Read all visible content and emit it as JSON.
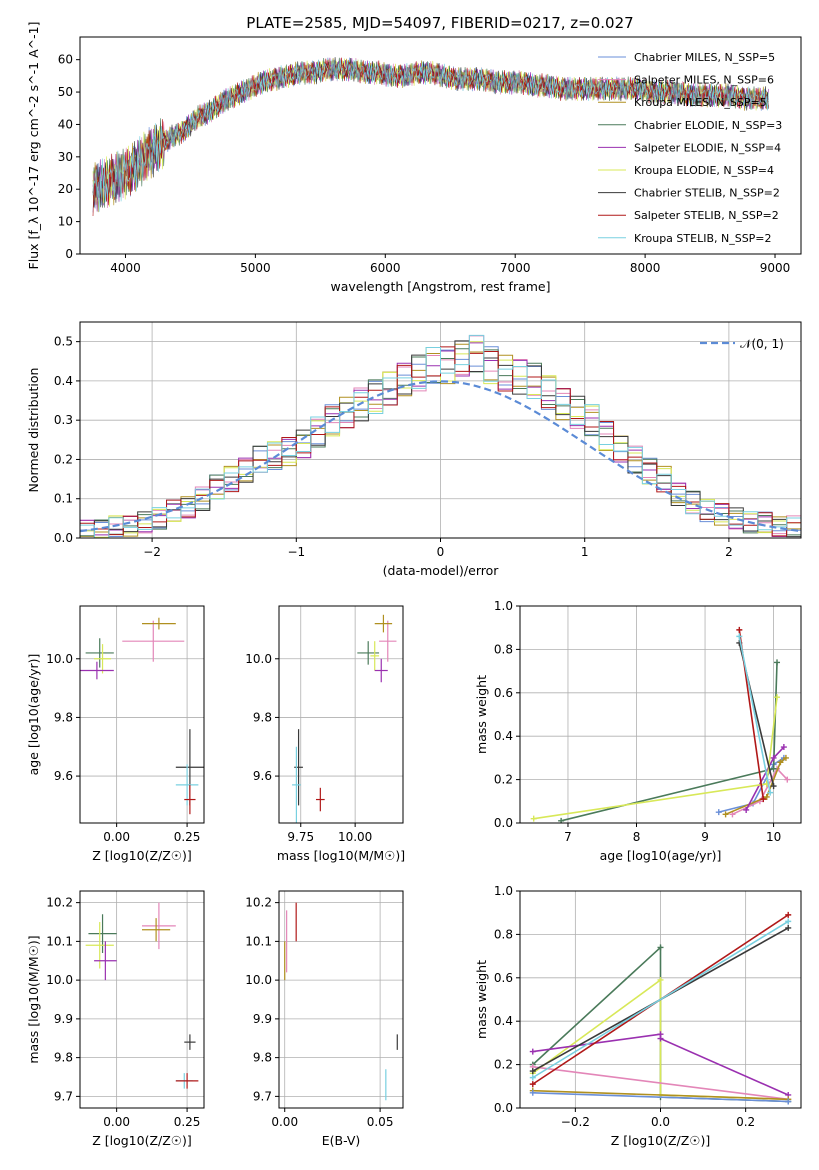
{
  "figure_title": "PLATE=2585, MJD=54097, FIBERID=0217, z=0.027",
  "legend_labels": [
    "Chabrier MILES, N_SSP=5",
    "Salpeter MILES, N_SSP=6",
    "Kroupa MILES, N_SSP=5",
    "Chabrier ELODIE, N_SSP=3",
    "Salpeter ELODIE, N_SSP=4",
    "Kroupa ELODIE, N_SSP=4",
    "Chabrier STELIB, N_SSP=2",
    "Salpeter STELIB, N_SSP=2",
    "Kroupa STELIB, N_SSP=2"
  ],
  "model_colors": [
    "#6a8fd8",
    "#e386b8",
    "#b09020",
    "#4a7a5a",
    "#9a30b0",
    "#d8e858",
    "#3a3a3a",
    "#b01818",
    "#78d0e0"
  ],
  "chart_data": [
    {
      "id": "spectrum",
      "type": "line",
      "xlabel": "wavelength [Angstrom, rest frame]",
      "ylabel": "Flux [f_λ 10^-17 erg cm^-2 s^-1 A^-1]",
      "xlim": [
        3650,
        9200
      ],
      "ylim": [
        0,
        67
      ],
      "xticks": [
        "4000",
        "5000",
        "6000",
        "7000",
        "8000",
        "9000"
      ],
      "yticks": [
        "0",
        "10",
        "20",
        "30",
        "40",
        "50",
        "60"
      ],
      "grid": false,
      "legend_position": "upper-right",
      "x": [
        3750,
        3800,
        3850,
        3900,
        3950,
        4000,
        4100,
        4200,
        4300,
        4400,
        4500,
        4600,
        4700,
        4800,
        4900,
        5000,
        5100,
        5200,
        5300,
        5400,
        5500,
        5600,
        5700,
        5800,
        5900,
        6000,
        6100,
        6200,
        6300,
        6400,
        6500,
        6600,
        6700,
        6800,
        6900,
        7000,
        7100,
        7200,
        7300,
        7400,
        7500,
        7600,
        7700,
        7800,
        7900,
        8000,
        8100,
        8200,
        8300,
        8400,
        8500,
        8600,
        8700,
        8800,
        8900
      ],
      "y": [
        20,
        22,
        24,
        26,
        30,
        33,
        36,
        38,
        42,
        44,
        47,
        49,
        51,
        53,
        54,
        55,
        56,
        56,
        57,
        57,
        57,
        56,
        56,
        55,
        55,
        56,
        56,
        55,
        54,
        54,
        54,
        53,
        53,
        53,
        52,
        52,
        51,
        51,
        51,
        51,
        51,
        51,
        51,
        50,
        50,
        50,
        49,
        49,
        49,
        49,
        48,
        48,
        48,
        48,
        48
      ]
    },
    {
      "id": "residuals",
      "type": "step",
      "xlabel": "(data-model)/error",
      "ylabel": "Normed distribution",
      "xlim": [
        -2.5,
        2.5
      ],
      "ylim": [
        0,
        0.55
      ],
      "xticks": [
        "−2",
        "−1",
        "0",
        "1",
        "2"
      ],
      "yticks": [
        "0.0",
        "0.1",
        "0.2",
        "0.3",
        "0.4",
        "0.5"
      ],
      "grid": true,
      "legend_position": "upper-right",
      "reference_label": "𝒩(0, 1)",
      "bin_edges_start": -2.5,
      "bin_width": 0.1,
      "values": [
        0.02,
        0.02,
        0.03,
        0.03,
        0.04,
        0.05,
        0.07,
        0.08,
        0.1,
        0.13,
        0.15,
        0.17,
        0.2,
        0.21,
        0.22,
        0.24,
        0.27,
        0.3,
        0.32,
        0.34,
        0.36,
        0.38,
        0.4,
        0.42,
        0.44,
        0.44,
        0.46,
        0.47,
        0.44,
        0.42,
        0.41,
        0.4,
        0.37,
        0.34,
        0.32,
        0.3,
        0.26,
        0.23,
        0.2,
        0.17,
        0.15,
        0.11,
        0.09,
        0.07,
        0.06,
        0.05,
        0.04,
        0.04,
        0.03,
        0.03
      ]
    },
    {
      "id": "age-vs-Z",
      "type": "scatter",
      "xlabel": "Z [log10(Z/Z☉)]",
      "ylabel": "age  [log10(age/yr)]",
      "xlim": [
        -0.13,
        0.31
      ],
      "ylim": [
        9.44,
        10.18
      ],
      "xticks": [
        "0.00",
        "0.25"
      ],
      "yticks": [
        "9.6",
        "9.8",
        "10.0"
      ],
      "grid": true,
      "points": [
        {
          "x": 0.26,
          "y": 9.63,
          "xerr": 0.05,
          "yerr": 0.13
        },
        {
          "x": 0.25,
          "y": 9.57,
          "xerr": 0.04,
          "yerr": 0.07
        },
        {
          "x": 0.26,
          "y": 9.52,
          "xerr": 0.02,
          "yerr": 0.05
        },
        {
          "x": 0.13,
          "y": 10.06,
          "xerr": 0.11,
          "yerr": 0.07
        },
        {
          "x": 0.15,
          "y": 10.12,
          "xerr": 0.06,
          "yerr": 0.02
        },
        {
          "x": -0.06,
          "y": 10.02,
          "xerr": 0.05,
          "yerr": 0.05
        },
        {
          "x": -0.05,
          "y": 10.0,
          "xerr": 0.03,
          "yerr": 0.05
        },
        {
          "x": -0.07,
          "y": 9.96,
          "xerr": 0.06,
          "yerr": 0.03
        }
      ]
    },
    {
      "id": "age-vs-mass",
      "type": "scatter",
      "xlabel": "mass [log10(M/M☉)]",
      "ylabel": "",
      "xlim": [
        9.65,
        10.22
      ],
      "ylim": [
        9.44,
        10.18
      ],
      "xticks": [
        "9.75",
        "10.00"
      ],
      "yticks": [
        "9.6",
        "9.8",
        "10.0"
      ],
      "grid": true,
      "points": [
        {
          "x": 9.74,
          "y": 9.63,
          "xerr": 0.02,
          "yerr": 0.13
        },
        {
          "x": 9.73,
          "y": 9.57,
          "xerr": 0.02,
          "yerr": 0.13
        },
        {
          "x": 9.84,
          "y": 9.52,
          "xerr": 0.02,
          "yerr": 0.04
        },
        {
          "x": 10.15,
          "y": 10.06,
          "xerr": 0.04,
          "yerr": 0.07
        },
        {
          "x": 10.13,
          "y": 10.12,
          "xerr": 0.04,
          "yerr": 0.03
        },
        {
          "x": 10.06,
          "y": 10.02,
          "xerr": 0.05,
          "yerr": 0.04
        },
        {
          "x": 10.09,
          "y": 10.01,
          "xerr": 0.02,
          "yerr": 0.05
        },
        {
          "x": 10.12,
          "y": 9.96,
          "xerr": 0.03,
          "yerr": 0.04
        }
      ]
    },
    {
      "id": "weight-vs-age",
      "type": "line",
      "xlabel": "age  [log10(age/yr)]",
      "ylabel": "mass weight",
      "xlim": [
        6.3,
        10.4
      ],
      "ylim": [
        0,
        1.0
      ],
      "xticks": [
        "7",
        "8",
        "9",
        "10"
      ],
      "yticks": [
        "0.0",
        "0.2",
        "0.4",
        "0.6",
        "0.8",
        "1.0"
      ],
      "grid": true,
      "series": [
        {
          "color_index": 0,
          "x": [
            9.2,
            9.7,
            10.0,
            10.15
          ],
          "y": [
            0.05,
            0.09,
            0.27,
            0.3
          ]
        },
        {
          "color_index": 1,
          "x": [
            9.4,
            9.8,
            10.05,
            10.2
          ],
          "y": [
            0.04,
            0.1,
            0.25,
            0.2
          ]
        },
        {
          "color_index": 2,
          "x": [
            9.3,
            9.9,
            10.1,
            10.18
          ],
          "y": [
            0.04,
            0.12,
            0.28,
            0.3
          ]
        },
        {
          "color_index": 3,
          "x": [
            6.9,
            10.0,
            10.05
          ],
          "y": [
            0.01,
            0.25,
            0.74
          ]
        },
        {
          "color_index": 4,
          "x": [
            9.6,
            10.0,
            10.15
          ],
          "y": [
            0.06,
            0.3,
            0.35
          ]
        },
        {
          "color_index": 5,
          "x": [
            6.5,
            9.9,
            10.05
          ],
          "y": [
            0.02,
            0.18,
            0.58
          ]
        },
        {
          "color_index": 6,
          "x": [
            9.5,
            10.0
          ],
          "y": [
            0.83,
            0.17
          ]
        },
        {
          "color_index": 7,
          "x": [
            9.5,
            9.85
          ],
          "y": [
            0.89,
            0.11
          ]
        },
        {
          "color_index": 8,
          "x": [
            9.5,
            9.95
          ],
          "y": [
            0.86,
            0.14
          ]
        }
      ]
    },
    {
      "id": "mass-vs-Z",
      "type": "scatter",
      "xlabel": "Z [log10(Z/Z☉)]",
      "ylabel": "mass [log10(M/M☉)]",
      "xlim": [
        -0.13,
        0.31
      ],
      "ylim": [
        9.67,
        10.23
      ],
      "xticks": [
        "0.00",
        "0.25"
      ],
      "yticks": [
        "9.7",
        "9.8",
        "9.9",
        "10.0",
        "10.1",
        "10.2"
      ],
      "grid": true,
      "points": [
        {
          "x": 0.26,
          "y": 9.84,
          "xerr": 0.02,
          "yerr": 0.02
        },
        {
          "x": 0.24,
          "y": 9.74,
          "xerr": 0.03,
          "yerr": 0.02
        },
        {
          "x": 0.25,
          "y": 9.74,
          "xerr": 0.04,
          "yerr": 0.02
        },
        {
          "x": 0.15,
          "y": 10.14,
          "xerr": 0.06,
          "yerr": 0.06
        },
        {
          "x": 0.14,
          "y": 10.13,
          "xerr": 0.05,
          "yerr": 0.03
        },
        {
          "x": -0.05,
          "y": 10.12,
          "xerr": 0.05,
          "yerr": 0.05
        },
        {
          "x": -0.06,
          "y": 10.09,
          "xerr": 0.05,
          "yerr": 0.06
        },
        {
          "x": -0.04,
          "y": 10.05,
          "xerr": 0.04,
          "yerr": 0.05
        }
      ]
    },
    {
      "id": "mass-vs-ebv",
      "type": "scatter",
      "xlabel": "E(B-V)",
      "ylabel": "",
      "xlim": [
        -0.003,
        0.062
      ],
      "ylim": [
        9.67,
        10.23
      ],
      "xticks": [
        "0.00",
        "0.05"
      ],
      "yticks": [
        "9.7",
        "9.8",
        "9.9",
        "10.0",
        "10.1",
        "10.2"
      ],
      "grid": true,
      "points": [
        {
          "x": 0.059,
          "y": 9.84,
          "xerr": 0,
          "yerr": 0.02
        },
        {
          "x": 0.053,
          "y": 9.73,
          "xerr": 0,
          "yerr": 0.04
        },
        {
          "x": 0.006,
          "y": 10.15,
          "xerr": 0,
          "yerr": 0.05
        },
        {
          "x": 0.001,
          "y": 10.1,
          "xerr": 0,
          "yerr": 0.08
        },
        {
          "x": 0.0,
          "y": 10.05,
          "xerr": 0,
          "yerr": 0.05
        }
      ]
    },
    {
      "id": "weight-vs-Z",
      "type": "line",
      "xlabel": "Z [log10(Z/Z☉)]",
      "ylabel": "mass weight",
      "xlim": [
        -0.33,
        0.33
      ],
      "ylim": [
        0,
        1.0
      ],
      "xticks": [
        "−0.2",
        "0.0",
        "0.2"
      ],
      "yticks": [
        "0.0",
        "0.2",
        "0.4",
        "0.6",
        "0.8",
        "1.0"
      ],
      "grid": true,
      "series": [
        {
          "color_index": 3,
          "x": [
            -0.3,
            0.0,
            0.0,
            0.3
          ],
          "y": [
            0.2,
            0.74,
            0.05,
            0.03
          ]
        },
        {
          "color_index": 5,
          "x": [
            -0.3,
            0.0,
            0.0,
            0.3
          ],
          "y": [
            0.16,
            0.59,
            0.06,
            0.04
          ]
        },
        {
          "color_index": 4,
          "x": [
            -0.3,
            0.0,
            0.0,
            0.3
          ],
          "y": [
            0.26,
            0.34,
            0.32,
            0.06
          ]
        },
        {
          "color_index": 1,
          "x": [
            -0.3,
            0.3
          ],
          "y": [
            0.19,
            0.04
          ]
        },
        {
          "color_index": 7,
          "x": [
            -0.3,
            0.3
          ],
          "y": [
            0.11,
            0.89
          ]
        },
        {
          "color_index": 6,
          "x": [
            -0.3,
            0.3
          ],
          "y": [
            0.17,
            0.83
          ]
        },
        {
          "color_index": 8,
          "x": [
            -0.3,
            0.3
          ],
          "y": [
            0.14,
            0.86
          ]
        },
        {
          "color_index": 2,
          "x": [
            -0.3,
            0.3
          ],
          "y": [
            0.08,
            0.04
          ]
        },
        {
          "color_index": 0,
          "x": [
            -0.3,
            0.3
          ],
          "y": [
            0.07,
            0.03
          ]
        }
      ]
    }
  ]
}
